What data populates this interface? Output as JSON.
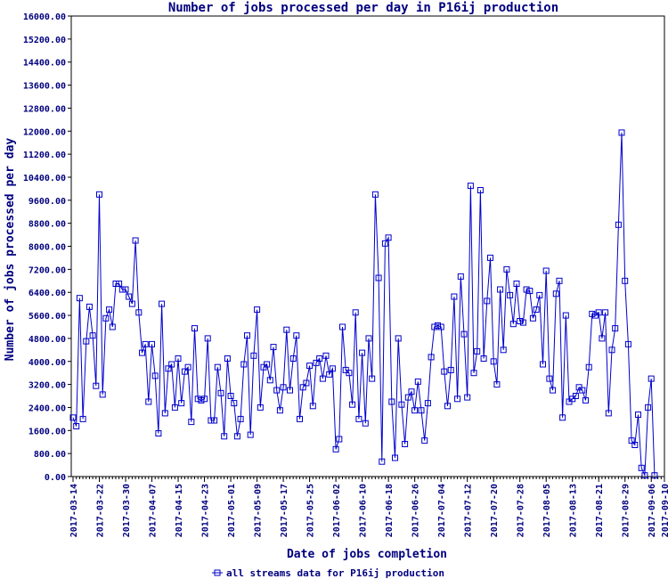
{
  "chart_data": {
    "type": "line",
    "title": "Number of jobs processed per day in P16ij production",
    "xlabel": "Date of jobs completion",
    "ylabel": "Number of jobs processed per day",
    "ylim": [
      0,
      16000
    ],
    "yticks": [
      "0.00",
      "800.00",
      "1600.00",
      "2400.00",
      "3200.00",
      "4000.00",
      "4800.00",
      "5600.00",
      "6400.00",
      "7200.00",
      "8000.00",
      "8800.00",
      "9600.00",
      "10400.00",
      "11200.00",
      "12000.00",
      "12800.00",
      "13600.00",
      "14400.00",
      "15200.00",
      "16000.00"
    ],
    "xlim": [
      "2017-03-14",
      "2017-09-10"
    ],
    "xticks": [
      "2017-03-14",
      "2017-03-22",
      "2017-03-30",
      "2017-04-07",
      "2017-04-15",
      "2017-04-23",
      "2017-05-01",
      "2017-05-09",
      "2017-05-17",
      "2017-05-25",
      "2017-06-02",
      "2017-06-10",
      "2017-06-18",
      "2017-06-26",
      "2017-07-04",
      "2017-07-12",
      "2017-07-20",
      "2017-07-28",
      "2017-08-05",
      "2017-08-13",
      "2017-08-21",
      "2017-08-29",
      "2017-09-06",
      "2017-09-10"
    ],
    "grid": false,
    "legend_position": "bottom-center",
    "series": [
      {
        "name": "all streams data for P16ij production",
        "color": "#0000cc",
        "start_date": "2017-03-14",
        "values": [
          2050,
          1750,
          6200,
          2000,
          4700,
          5900,
          4900,
          3150,
          9800,
          2850,
          5500,
          5800,
          5200,
          6700,
          6700,
          6500,
          6500,
          6250,
          6000,
          8200,
          5700,
          4300,
          4600,
          2600,
          4600,
          3500,
          1500,
          6000,
          2200,
          3750,
          3900,
          2400,
          4100,
          2550,
          3650,
          3800,
          1900,
          5150,
          2700,
          2650,
          2700,
          4800,
          1950,
          1950,
          3800,
          2900,
          1400,
          4100,
          2800,
          2550,
          1400,
          2000,
          3900,
          4900,
          1450,
          4200,
          5800,
          2400,
          3800,
          3900,
          3350,
          4500,
          3000,
          2300,
          3100,
          5100,
          3000,
          4100,
          4900,
          2000,
          3100,
          3250,
          3850,
          2450,
          3950,
          4100,
          3400,
          4200,
          3550,
          3750,
          950,
          1300,
          5200,
          3700,
          3600,
          2500,
          5700,
          2000,
          4300,
          1850,
          4800,
          3400,
          9800,
          6900,
          520,
          8100,
          8300,
          2600,
          650,
          4800,
          2500,
          1130,
          2750,
          2950,
          2300,
          3300,
          2300,
          1250,
          2550,
          4150,
          5200,
          5250,
          5200,
          3650,
          2450,
          3700,
          6250,
          2700,
          6950,
          4950,
          2750,
          10100,
          3600,
          4350,
          9950,
          4100,
          6100,
          7600,
          4000,
          3200,
          6500,
          4400,
          7200,
          6300,
          5300,
          6700,
          5400,
          5350,
          6500,
          6450,
          5500,
          5800,
          6300,
          3900,
          7150,
          3400,
          3000,
          6350,
          6800,
          2050,
          5600,
          2600,
          2700,
          2800,
          3100,
          3000,
          2650,
          3800,
          5650,
          5600,
          5700,
          4800,
          5700,
          2200,
          4400,
          5150,
          8750,
          11950,
          6800,
          4600,
          1250,
          1100,
          2150,
          300,
          40,
          2400,
          3400,
          40
        ]
      }
    ]
  }
}
